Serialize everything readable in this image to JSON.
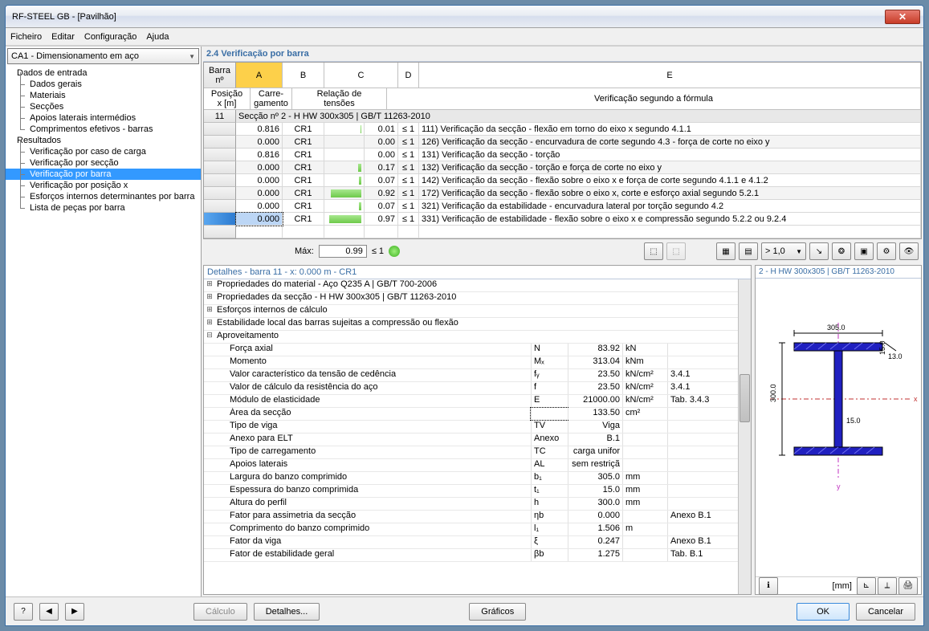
{
  "window": {
    "title": "RF-STEEL GB - [Pavilhão]"
  },
  "menu": {
    "items": [
      "Ficheiro",
      "Editar",
      "Configuração",
      "Ajuda"
    ]
  },
  "combo": {
    "text": "CA1 - Dimensionamento em aço"
  },
  "tree": {
    "n0": "Dados de entrada",
    "n1": "Dados gerais",
    "n2": "Materiais",
    "n3": "Secções",
    "n4": "Apoios laterais intermédios",
    "n5": "Comprimentos efetivos - barras",
    "n6": "Resultados",
    "n7": "Verificação por caso de carga",
    "n8": "Verificação por secção",
    "n9": "Verificação por barra",
    "n10": "Verificação por posição x",
    "n11": "Esforços internos determinantes por barra",
    "n12": "Lista de peças por barra"
  },
  "section_header": "2.4 Verificação por barra",
  "grid": {
    "col_letters": {
      "a": "A",
      "b": "B",
      "c": "C",
      "d": "D",
      "e": "E"
    },
    "headers": {
      "barra1": "Barra",
      "barra2": "nº",
      "posicao1": "Posição",
      "posicao2": "x [m]",
      "carre1": "Carre-",
      "carre2": "gamento",
      "relacao1": "Relação de",
      "relacao2": "tensões",
      "formula": "Verificação segundo a fórmula"
    },
    "section_row": {
      "num": "11",
      "text": "Secção nº 2 - H HW 300x305 | GB/T 11263-2010"
    },
    "rows": [
      {
        "x": "0.816",
        "cr": "CR1",
        "ratio": "0.01",
        "bar": 1,
        "ref": "111) Verificação da secção - flexão em torno do eixo x segundo 4.1.1"
      },
      {
        "x": "0.000",
        "cr": "CR1",
        "ratio": "0.00",
        "bar": 0,
        "ref": "126) Verificação da secção - encurvadura de corte segundo 4.3 - força de corte no eixo y"
      },
      {
        "x": "0.816",
        "cr": "CR1",
        "ratio": "0.00",
        "bar": 0,
        "ref": "131) Verificação da secção - torção"
      },
      {
        "x": "0.000",
        "cr": "CR1",
        "ratio": "0.17",
        "bar": 4,
        "ref": "132) Verificação da secção - torção e força de corte no eixo y"
      },
      {
        "x": "0.000",
        "cr": "CR1",
        "ratio": "0.07",
        "bar": 3,
        "ref": "142) Verificação da secção - flexão sobre o eixo x e força de corte segundo 4.1.1 e 4.1.2"
      },
      {
        "x": "0.000",
        "cr": "CR1",
        "ratio": "0.92",
        "bar": 38,
        "ref": "172) Verificação da secção - flexão sobre o eixo x, corte e esforço axial segundo 5.2.1"
      },
      {
        "x": "0.000",
        "cr": "CR1",
        "ratio": "0.07",
        "bar": 3,
        "ref": "321) Verificação da estabilidade - encurvadura lateral por torção segundo 4.2"
      },
      {
        "x": "0.000",
        "cr": "CR1",
        "ratio": "0.97",
        "bar": 40,
        "ref": "331) Verificação de estabilidade - flexão sobre o eixo x e compressão segundo 5.2.2 ou 9.2.4",
        "selected": true
      }
    ],
    "le1": "≤ 1"
  },
  "maxrow": {
    "label": "Máx:",
    "value": "0.99",
    "le": "≤ 1",
    "ratio_sel": "> 1,0"
  },
  "details": {
    "title": "Detalhes - barra 11 - x: 0.000 m - CR1",
    "groups": {
      "g1": "Propriedades do material - Aço Q235 A | GB/T 700-2006",
      "g2": "Propriedades da secção  -  H HW 300x305 | GB/T 11263-2010",
      "g3": "Esforços internos de cálculo",
      "g4": "Estabilidade local das barras sujeitas a compressão ou flexão",
      "g5": "Aproveitamento"
    },
    "rows": [
      {
        "l": "Força axial",
        "s": "N",
        "v": "83.92",
        "u": "kN",
        "r": ""
      },
      {
        "l": "Momento",
        "s": "Mₓ",
        "v": "313.04",
        "u": "kNm",
        "r": ""
      },
      {
        "l": "Valor característico da tensão de cedência",
        "s": "fᵧ",
        "v": "23.50",
        "u": "kN/cm²",
        "r": "3.4.1"
      },
      {
        "l": "Valor de cálculo da resistência do aço",
        "s": "f",
        "v": "23.50",
        "u": "kN/cm²",
        "r": "3.4.1"
      },
      {
        "l": "Módulo de elasticidade",
        "s": "E",
        "v": "21000.00",
        "u": "kN/cm²",
        "r": "Tab. 3.4.3"
      },
      {
        "l": "Área da secção",
        "s": "",
        "v": "133.50",
        "u": "cm²",
        "r": "",
        "focus": true
      },
      {
        "l": "Tipo de viga",
        "s": "TV",
        "v": "Viga",
        "u": "",
        "r": ""
      },
      {
        "l": "Anexo para ELT",
        "s": "Anexo",
        "v": "B.1",
        "u": "",
        "r": ""
      },
      {
        "l": "Tipo de carregamento",
        "s": "TC",
        "v": "carga unifor",
        "u": "",
        "r": ""
      },
      {
        "l": "Apoios laterais",
        "s": "AL",
        "v": "sem restriçã",
        "u": "",
        "r": ""
      },
      {
        "l": "Largura do banzo comprimido",
        "s": "b₁",
        "v": "305.0",
        "u": "mm",
        "r": ""
      },
      {
        "l": "Espessura do banzo comprimida",
        "s": "t₁",
        "v": "15.0",
        "u": "mm",
        "r": ""
      },
      {
        "l": "Altura do perfil",
        "s": "h",
        "v": "300.0",
        "u": "mm",
        "r": ""
      },
      {
        "l": "Fator para assimetria da secção",
        "s": "ηb",
        "v": "0.000",
        "u": "",
        "r": "Anexo B.1"
      },
      {
        "l": "Comprimento do banzo comprimido",
        "s": "l₁",
        "v": "1.506",
        "u": "m",
        "r": ""
      },
      {
        "l": "Fator da viga",
        "s": "ξ",
        "v": "0.247",
        "u": "",
        "r": "Anexo B.1"
      },
      {
        "l": "Fator de estabilidade geral",
        "s": "βb",
        "v": "1.275",
        "u": "",
        "r": "Tab. B.1"
      }
    ]
  },
  "preview": {
    "title": "2 - H HW 300x305 | GB/T 11263-2010",
    "dims": {
      "width": "305.0",
      "height": "300.0",
      "tf": "15.0",
      "tw": "13.0"
    },
    "unit": "[mm]",
    "colors": {
      "section": "#2020c0",
      "hatch": "#4848e0",
      "x_axis": "#c03030",
      "y_axis": "#c030c0"
    }
  },
  "footer": {
    "calc": "Cálculo",
    "details": "Detalhes...",
    "graphics": "Gráficos",
    "ok": "OK",
    "cancel": "Cancelar"
  }
}
